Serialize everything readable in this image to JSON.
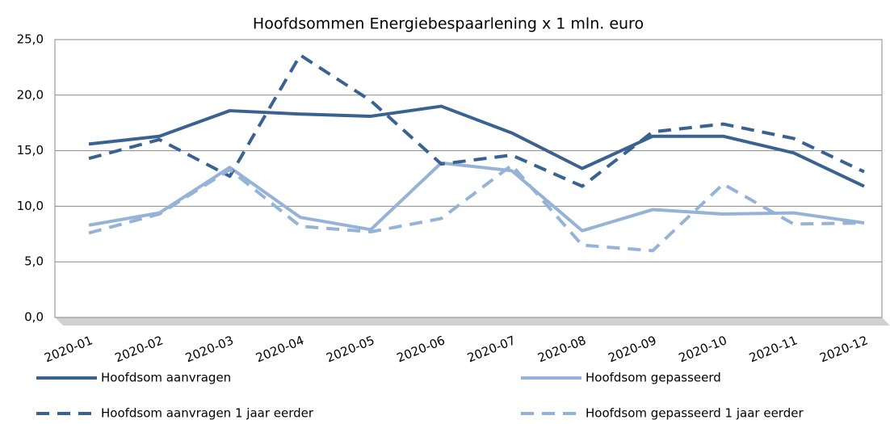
{
  "chart_data": {
    "type": "line",
    "title": "Hoofdsommen Energiebespaarlening x 1 mln. euro",
    "categories": [
      "2020-01",
      "2020-02",
      "2020-03",
      "2020-04",
      "2020-05",
      "2020-06",
      "2020-07",
      "2020-08",
      "2020-09",
      "2020-10",
      "2020-11",
      "2020-12"
    ],
    "series": [
      {
        "name": "Hoofdsom aanvragen",
        "color": "#3a6291",
        "dashed": false,
        "values": [
          15.6,
          16.3,
          18.6,
          18.3,
          18.1,
          19.0,
          16.6,
          13.4,
          16.3,
          16.3,
          14.8,
          11.8
        ]
      },
      {
        "name": "Hoofdsom gepasseerd",
        "color": "#95b3d7",
        "dashed": false,
        "values": [
          8.3,
          9.4,
          13.5,
          9.0,
          7.9,
          13.9,
          13.2,
          7.8,
          9.7,
          9.3,
          9.4,
          8.5
        ]
      },
      {
        "name": "Hoofdsom aanvragen 1  jaar eerder",
        "color": "#3a6291",
        "dashed": true,
        "values": [
          14.3,
          16.0,
          12.7,
          23.6,
          19.5,
          13.8,
          14.6,
          11.8,
          16.7,
          17.4,
          16.1,
          13.1
        ]
      },
      {
        "name": "Hoofdsom gepasseerd 1 jaar eerder",
        "color": "#95b3d7",
        "dashed": true,
        "values": [
          7.6,
          9.3,
          13.3,
          8.2,
          7.7,
          8.9,
          13.7,
          6.5,
          6.0,
          12.0,
          8.4,
          8.5
        ]
      }
    ],
    "ylim": [
      0,
      25
    ],
    "yticks": [
      {
        "value": 0,
        "label": "0,0"
      },
      {
        "value": 5,
        "label": "5,0"
      },
      {
        "value": 10,
        "label": "10,0"
      },
      {
        "value": 15,
        "label": "15,0"
      },
      {
        "value": 20,
        "label": "20,0"
      },
      {
        "value": 25,
        "label": "25,0"
      }
    ],
    "grid": true
  }
}
